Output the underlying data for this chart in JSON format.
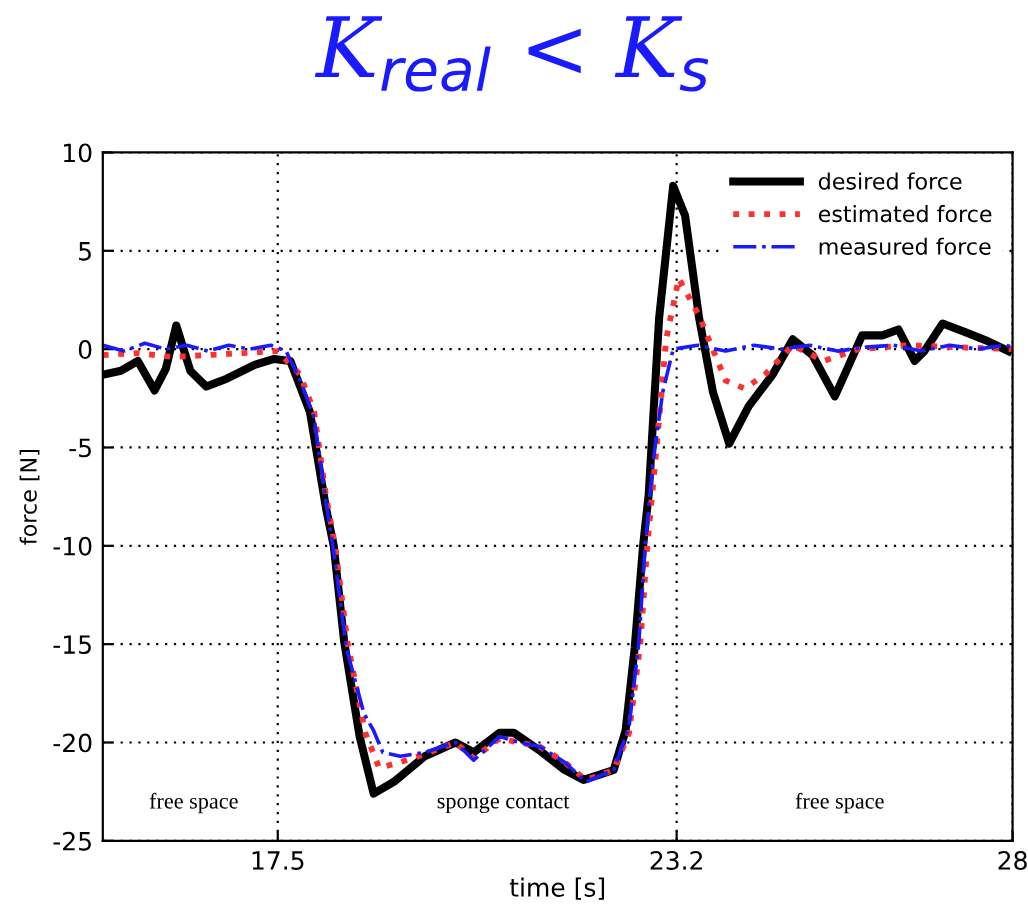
{
  "chart_data": {
    "type": "line",
    "title": "K$_{real}$ < K$_{s}$",
    "xlabel": "time [s]",
    "ylabel": "force [N]",
    "xlim": [
      15,
      28
    ],
    "xticks": [
      17.5,
      23.2,
      28
    ],
    "ylim": [
      -25,
      10
    ],
    "yticks": [
      -25,
      -20,
      -15,
      -10,
      -5,
      0,
      5,
      10
    ],
    "grid": true,
    "legend": "top right",
    "annotations": [
      "free space",
      "sponge contact",
      "free space"
    ],
    "series": [
      {
        "name": "desired force",
        "color": "#000000",
        "line_style": "solid",
        "x": [
          15,
          15.26,
          15.5,
          15.74,
          15.9,
          16.05,
          16.25,
          16.48,
          16.77,
          17.17,
          17.45,
          17.68,
          17.96,
          18.19,
          18.3,
          18.45,
          18.67,
          18.87,
          19.16,
          19.6,
          20.04,
          20.3,
          20.67,
          20.87,
          21.24,
          21.6,
          21.87,
          22.3,
          22.47,
          22.6,
          22.72,
          22.8,
          22.95,
          23.15,
          23.32,
          23.52,
          23.72,
          23.95,
          24.23,
          24.57,
          24.86,
          25.14,
          25.46,
          25.6,
          25.85,
          26.14,
          26.37,
          26.6,
          26.74,
          27.0,
          27.3,
          27.65,
          27.94
        ],
        "values": [
          -1.3,
          -1.1,
          -0.6,
          -2.1,
          -1.0,
          1.2,
          -1.1,
          -1.9,
          -1.5,
          -0.8,
          -0.5,
          -0.6,
          -3.2,
          -8.1,
          -10,
          -14.9,
          -19.7,
          -22.6,
          -22,
          -20.7,
          -20,
          -20.5,
          -19.5,
          -19.5,
          -20.4,
          -21.4,
          -21.9,
          -21.4,
          -19.4,
          -15.2,
          -10,
          -7.4,
          1.6,
          8.3,
          6.8,
          1.6,
          -2.2,
          -4.8,
          -2.9,
          -1.3,
          0.5,
          -0.3,
          -2.4,
          -1.3,
          0.7,
          0.7,
          1.0,
          -0.6,
          -0.1,
          1.3,
          0.9,
          0.4,
          -0.1
        ]
      },
      {
        "name": "estimated force",
        "color": "#ff3030",
        "line_style": "dotted",
        "x": [
          15,
          15.5,
          16,
          16.5,
          17,
          17.5,
          17.82,
          18.02,
          18.19,
          18.32,
          18.5,
          18.75,
          18.95,
          19.25,
          19.6,
          20.04,
          20.3,
          20.67,
          21.24,
          21.6,
          21.9,
          22.3,
          22.52,
          22.68,
          22.78,
          22.9,
          23.05,
          23.23,
          23.52,
          23.9,
          24.17,
          24.46,
          24.86,
          25.3,
          25.8,
          26.5,
          27.2,
          28
        ],
        "values": [
          -0.3,
          -0.2,
          -0.4,
          -0.3,
          -0.2,
          -0.1,
          -1.3,
          -3.2,
          -7.5,
          -10,
          -15,
          -19.5,
          -21.3,
          -21.0,
          -20.6,
          -20.0,
          -20.8,
          -19.8,
          -20.2,
          -21.0,
          -21.9,
          -21.4,
          -19.5,
          -15,
          -10,
          -5.5,
          0.5,
          3.6,
          1.7,
          -1.6,
          -2.0,
          -1.3,
          0.2,
          -0.6,
          0,
          0.2,
          0.1,
          0
        ]
      },
      {
        "name": "measured force",
        "color": "#1a1aff",
        "line_style": "dashdot",
        "x": [
          15,
          15.3,
          15.6,
          15.9,
          16.2,
          16.5,
          16.8,
          17.1,
          17.4,
          17.62,
          17.82,
          18.02,
          18.19,
          18.3,
          18.48,
          18.73,
          18.87,
          19.0,
          19.25,
          19.6,
          20.04,
          20.3,
          20.67,
          20.95,
          21.24,
          21.6,
          21.9,
          22.3,
          22.52,
          22.66,
          22.75,
          22.86,
          23.0,
          23.15,
          23.5,
          23.9,
          24.3,
          24.7,
          25.1,
          25.5,
          25.9,
          26.3,
          26.7,
          27.1,
          27.5,
          27.9,
          28
        ],
        "values": [
          0.2,
          -0.1,
          0.3,
          0,
          0.2,
          -0.1,
          0.2,
          0,
          0.2,
          -0.1,
          -1.6,
          -3.5,
          -7.8,
          -10.3,
          -15.2,
          -18.5,
          -19.4,
          -20.5,
          -20.7,
          -20.5,
          -20.0,
          -20.9,
          -19.7,
          -20.0,
          -20.2,
          -21.0,
          -22.0,
          -21.4,
          -19.2,
          -14.9,
          -10,
          -5.8,
          -2.2,
          0,
          0.2,
          -0.1,
          0.2,
          0,
          0.2,
          -0.1,
          0.1,
          0.2,
          -0.1,
          0.2,
          0,
          0.2,
          0.1
        ]
      }
    ]
  }
}
